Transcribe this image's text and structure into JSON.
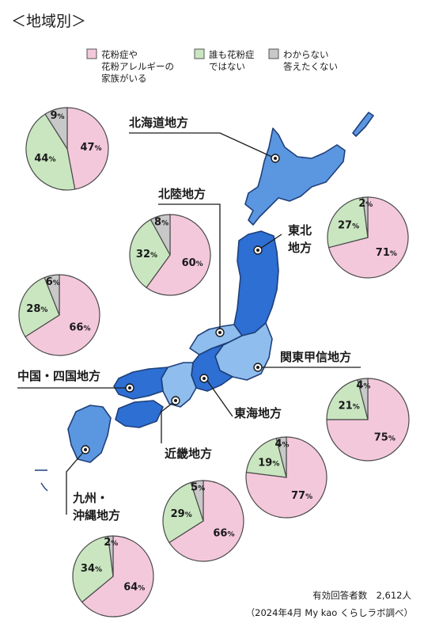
{
  "header": {
    "title": "＜地域別＞"
  },
  "legend": [
    {
      "label_lines": [
        "花粉症や",
        "花粉アレルギーの",
        "家族がいる"
      ],
      "color": "#f4c8db"
    },
    {
      "label_lines": [
        "誰も花粉症",
        "ではない"
      ],
      "color": "#c9e6c0"
    },
    {
      "label_lines": [
        "わからない",
        "答えたくない"
      ],
      "color": "#c8c8c8"
    }
  ],
  "colors": {
    "pink": "#f4c8db",
    "green": "#c9e6c0",
    "gray": "#c8c8c8",
    "map_dark": "#2d6fd3",
    "map_mid": "#5b97e0",
    "map_light": "#8fbdee",
    "outline": "#1f3f7a"
  },
  "chart_data": [
    {
      "type": "pie",
      "region_lines": [
        "北海道地方"
      ],
      "values": [
        47,
        44,
        9
      ]
    },
    {
      "type": "pie",
      "region_lines": [
        "北陸地方"
      ],
      "values": [
        60,
        32,
        8
      ]
    },
    {
      "type": "pie",
      "region_lines": [
        "東北",
        "地方"
      ],
      "values": [
        71,
        27,
        2
      ]
    },
    {
      "type": "pie",
      "region_lines": [
        "中国・四国地方"
      ],
      "values": [
        66,
        28,
        6
      ]
    },
    {
      "type": "pie",
      "region_lines": [
        "関東甲信地方"
      ],
      "values": [
        75,
        21,
        4
      ]
    },
    {
      "type": "pie",
      "region_lines": [
        "東海地方"
      ],
      "values": [
        77,
        19,
        4
      ]
    },
    {
      "type": "pie",
      "region_lines": [
        "近畿地方"
      ],
      "values": [
        66,
        29,
        5
      ]
    },
    {
      "type": "pie",
      "region_lines": [
        "九州・",
        "沖縄地方"
      ],
      "values": [
        64,
        34,
        2
      ]
    }
  ],
  "unit": "%",
  "footer": {
    "respondents": "有効回答者数　2,612人",
    "source": "（2024年4月 My kao くらしラボ調べ）"
  }
}
